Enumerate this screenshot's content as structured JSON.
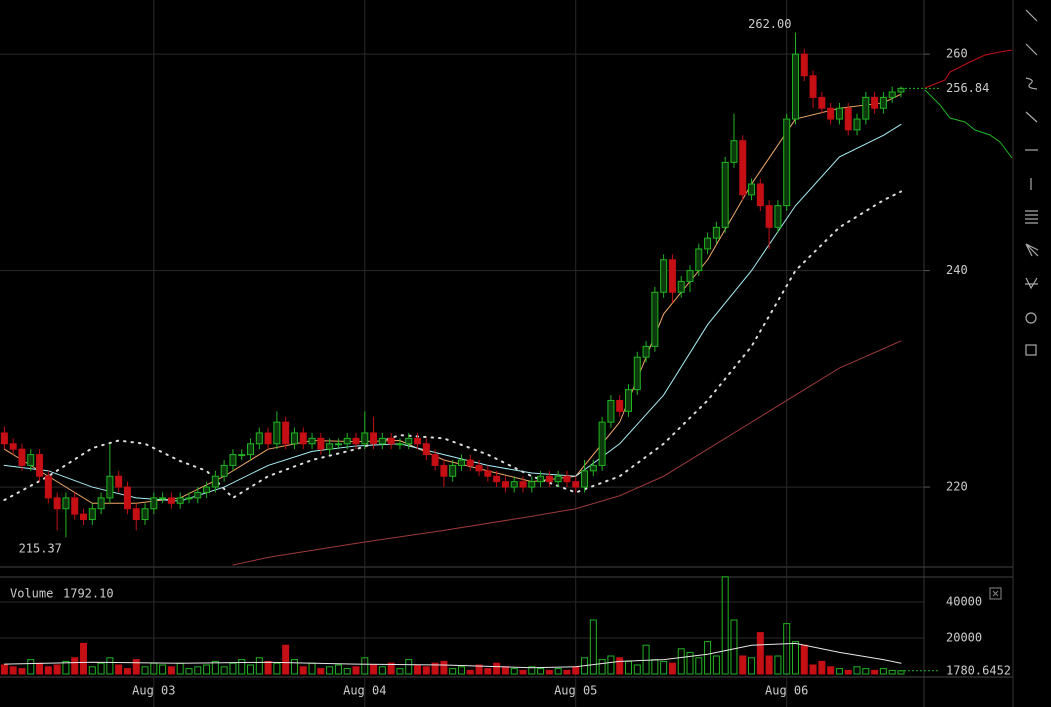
{
  "chart_data": {
    "type": "candlestick",
    "categories": [
      null,
      null,
      null,
      null,
      null,
      null,
      null,
      null,
      null,
      null,
      null,
      null,
      null,
      null,
      null,
      null,
      null,
      "Aug 03",
      null,
      null,
      null,
      null,
      null,
      null,
      null,
      null,
      null,
      null,
      null,
      null,
      null,
      null,
      null,
      null,
      null,
      null,
      null,
      null,
      null,
      null,
      null,
      "Aug 04",
      null,
      null,
      null,
      null,
      null,
      null,
      null,
      null,
      null,
      null,
      null,
      null,
      null,
      null,
      null,
      null,
      null,
      null,
      null,
      null,
      null,
      null,
      null,
      "Aug 05",
      null,
      null,
      null,
      null,
      null,
      null,
      null,
      null,
      null,
      null,
      null,
      null,
      null,
      null,
      null,
      null,
      null,
      null,
      null,
      null,
      null,
      null,
      null,
      "Aug 06",
      null,
      null,
      null,
      null,
      null,
      null,
      null,
      null,
      null,
      null,
      null,
      null,
      null
    ],
    "ohlc": [
      [
        225,
        225.6,
        223.5,
        224
      ],
      [
        224,
        224.5,
        223,
        223.5
      ],
      [
        223.5,
        224,
        221.5,
        222
      ],
      [
        222,
        223.5,
        221.5,
        223
      ],
      [
        223,
        223.5,
        220.5,
        221
      ],
      [
        221,
        221.5,
        218.5,
        219
      ],
      [
        219,
        219.5,
        216,
        218
      ],
      [
        218,
        219.5,
        215.37,
        219
      ],
      [
        219,
        219.5,
        217,
        217.5
      ],
      [
        217.5,
        218,
        216.5,
        217
      ],
      [
        217,
        218.5,
        216.5,
        218
      ],
      [
        218,
        219.5,
        217.5,
        219
      ],
      [
        219,
        224,
        218.5,
        221
      ],
      [
        221,
        221.5,
        219.5,
        220
      ],
      [
        220,
        220.5,
        217.5,
        218
      ],
      [
        218,
        218.5,
        216,
        217
      ],
      [
        217,
        218.5,
        216.5,
        218
      ],
      [
        218,
        219.5,
        217.5,
        219
      ],
      [
        219,
        219.5,
        218.5,
        219
      ],
      [
        219,
        219.5,
        218,
        218.5
      ],
      [
        218.5,
        219.5,
        218,
        219
      ],
      [
        219,
        219.5,
        218.5,
        219
      ],
      [
        219,
        220,
        218.5,
        219.5
      ],
      [
        219.5,
        220.5,
        219,
        220
      ],
      [
        220,
        221.5,
        219.5,
        221
      ],
      [
        221,
        222.5,
        220.5,
        222
      ],
      [
        222,
        223.5,
        221.5,
        223
      ],
      [
        223,
        223.5,
        222.5,
        223
      ],
      [
        223,
        224.5,
        222.5,
        224
      ],
      [
        224,
        225.5,
        223.5,
        225
      ],
      [
        225,
        225.5,
        223.5,
        224
      ],
      [
        224,
        227,
        223.5,
        226
      ],
      [
        226,
        226.5,
        223.5,
        224
      ],
      [
        224,
        225.5,
        223.5,
        225
      ],
      [
        225,
        225.5,
        223.5,
        224
      ],
      [
        224,
        225,
        223.5,
        224.5
      ],
      [
        224.5,
        225,
        223,
        223.5
      ],
      [
        223.5,
        224.5,
        223,
        224
      ],
      [
        224,
        224.5,
        223.5,
        224
      ],
      [
        224,
        225,
        223.5,
        224.5
      ],
      [
        224.5,
        225,
        223.5,
        224
      ],
      [
        224,
        227,
        223.5,
        225
      ],
      [
        225,
        226.5,
        223.5,
        224
      ],
      [
        224,
        225,
        223.5,
        224.5
      ],
      [
        224.5,
        225,
        223.5,
        224
      ],
      [
        224,
        224.5,
        223.5,
        224
      ],
      [
        224,
        225,
        223.5,
        224.5
      ],
      [
        224.5,
        225,
        223.5,
        224
      ],
      [
        224,
        224.5,
        222.5,
        223
      ],
      [
        223,
        223.5,
        221.5,
        222
      ],
      [
        222,
        222.5,
        220,
        221
      ],
      [
        221,
        222.5,
        220.5,
        222
      ],
      [
        222,
        223,
        221.5,
        222.5
      ],
      [
        222.5,
        223,
        221.5,
        222
      ],
      [
        222,
        222.5,
        221,
        221.5
      ],
      [
        221.5,
        222,
        220.5,
        221
      ],
      [
        221,
        221.5,
        220,
        220.5
      ],
      [
        220.5,
        221,
        219.5,
        220
      ],
      [
        220,
        221,
        219.5,
        220.5
      ],
      [
        220.5,
        221,
        219.5,
        220
      ],
      [
        220,
        221,
        219.5,
        220.5
      ],
      [
        220.5,
        221.5,
        220,
        221
      ],
      [
        221,
        221.5,
        220,
        220.5
      ],
      [
        220.5,
        221.5,
        220,
        221
      ],
      [
        221,
        221.5,
        220,
        220.5
      ],
      [
        220.5,
        221,
        219.5,
        220
      ],
      [
        220,
        222.5,
        219.5,
        221.5
      ],
      [
        221.5,
        222.5,
        221,
        222
      ],
      [
        222,
        226.5,
        221.5,
        226
      ],
      [
        226,
        228.5,
        225.5,
        228
      ],
      [
        228,
        228.5,
        226.5,
        227
      ],
      [
        227,
        229.5,
        226.5,
        229
      ],
      [
        229,
        232.5,
        228.5,
        232
      ],
      [
        232,
        233.5,
        231.5,
        233
      ],
      [
        233,
        238.5,
        232.5,
        238
      ],
      [
        238,
        241.5,
        237.5,
        241
      ],
      [
        241,
        241.5,
        237,
        238
      ],
      [
        238,
        239.5,
        237.5,
        239
      ],
      [
        239,
        240.5,
        238,
        240
      ],
      [
        240,
        242.5,
        239.5,
        242
      ],
      [
        242,
        243.5,
        241.5,
        243
      ],
      [
        243,
        244.5,
        242.5,
        244
      ],
      [
        244,
        250.5,
        243.5,
        250
      ],
      [
        250,
        254.5,
        249.5,
        252
      ],
      [
        252,
        252.5,
        246.5,
        247
      ],
      [
        247,
        248.5,
        246.5,
        248
      ],
      [
        248,
        248.5,
        245.5,
        246
      ],
      [
        246,
        246.5,
        242,
        244
      ],
      [
        244,
        246.5,
        243.5,
        246
      ],
      [
        246,
        254.5,
        245.5,
        254
      ],
      [
        254,
        262,
        253.5,
        260
      ],
      [
        260,
        260.5,
        257.5,
        258
      ],
      [
        258,
        258.5,
        255,
        256
      ],
      [
        256,
        256.5,
        254.5,
        255
      ],
      [
        255,
        255.5,
        253.5,
        254
      ],
      [
        254,
        255.5,
        253.5,
        255
      ],
      [
        255,
        255.5,
        252.5,
        253
      ],
      [
        253,
        254.5,
        252.5,
        254
      ],
      [
        254,
        256.5,
        253.5,
        256
      ],
      [
        256,
        256.5,
        254.5,
        255
      ],
      [
        255,
        256.5,
        254.5,
        256
      ],
      [
        256,
        257,
        255.5,
        256.5
      ],
      [
        256.5,
        257,
        256,
        256.84
      ]
    ],
    "up_color": "#22b422",
    "down_color": "#c40f14",
    "ylim": [
      212.8,
      265
    ],
    "yticks": [
      220,
      240,
      260
    ],
    "grid": true,
    "annotations": [
      {
        "value": 262,
        "label": "262.00",
        "index": 90
      },
      {
        "value": 215.37,
        "label": "215.37",
        "index": 7
      }
    ],
    "lines": [
      {
        "color": "#f0a868",
        "x": [
          0,
          5,
          10,
          15,
          20,
          25,
          30,
          35,
          40,
          45,
          50,
          55,
          60,
          65,
          70,
          75,
          80,
          85,
          90,
          95,
          100,
          102
        ],
        "values": [
          223.5,
          221,
          218.5,
          218.5,
          219,
          221,
          223.5,
          224.3,
          224.2,
          224.3,
          222.5,
          221.5,
          220.5,
          221,
          226,
          236,
          241,
          248,
          254,
          255,
          255.5,
          256.3
        ]
      },
      {
        "color": "#a8f0f8",
        "x": [
          0,
          5,
          10,
          15,
          20,
          25,
          30,
          35,
          40,
          45,
          50,
          55,
          60,
          65,
          70,
          75,
          80,
          85,
          90,
          95,
          100,
          102
        ],
        "values": [
          222,
          221.5,
          220,
          219,
          218.7,
          220,
          222,
          223.3,
          223.8,
          224,
          223,
          222,
          221.3,
          221,
          224,
          228.5,
          235,
          240,
          246,
          250.5,
          252.5,
          253.5
        ]
      },
      {
        "color": "#dddddd",
        "style": "dotted",
        "x": [
          0,
          5,
          10,
          13,
          16,
          20,
          23,
          26,
          30,
          35,
          40,
          45,
          50,
          55,
          60,
          65,
          70,
          75,
          80,
          85,
          90,
          95,
          100,
          102
        ],
        "values": [
          218.8,
          221,
          223.6,
          224.3,
          224,
          222.4,
          221.5,
          219,
          221,
          222.5,
          223.5,
          224.8,
          224.5,
          223,
          221,
          219.5,
          221,
          224,
          228,
          233,
          240,
          244,
          246.5,
          247.3
        ]
      },
      {
        "color": "#9c3a3a",
        "x": [
          26,
          30,
          40,
          50,
          60,
          65,
          70,
          75,
          80,
          85,
          90,
          95,
          102
        ],
        "values": [
          212.8,
          213.5,
          214.8,
          216,
          217.3,
          218,
          219.2,
          221,
          223.5,
          226,
          228.5,
          231,
          233.5
        ]
      }
    ],
    "volume": {
      "label": "Volume",
      "readout": "1792.10",
      "color_up": "#22b422",
      "color_down": "#c40f14",
      "values": [
        5000,
        4000,
        3000,
        8000,
        6000,
        4000,
        5000,
        7000,
        9000,
        17000,
        4000,
        6000,
        9000,
        5000,
        3000,
        8000,
        4000,
        6000,
        5000,
        4000,
        6000,
        3000,
        4000,
        5000,
        7000,
        4000,
        6000,
        8000,
        5000,
        9000,
        7000,
        6000,
        16000,
        8000,
        4000,
        6000,
        3000,
        4000,
        5000,
        3000,
        4000,
        9000,
        5000,
        4000,
        6000,
        3000,
        8000,
        5000,
        4000,
        6000,
        7000,
        3000,
        4000,
        2000,
        5000,
        3000,
        6000,
        4000,
        3000,
        2000,
        4000,
        3000,
        2000,
        3000,
        2000,
        4000,
        9000,
        30000,
        8000,
        10000,
        9000,
        7000,
        5000,
        16000,
        8000,
        7000,
        6000,
        14000,
        12000,
        9000,
        18000,
        10000,
        54000,
        30000,
        10000,
        9000,
        23000,
        10000,
        10000,
        28000,
        18000,
        16000,
        5000,
        7000,
        4000,
        3000,
        2000,
        4000,
        3000,
        2000,
        3000,
        2000,
        1792.1
      ],
      "ylim": [
        0,
        53900
      ],
      "yticks": [
        20000,
        40000
      ],
      "marker": {
        "value": 1780.6452,
        "label": "1780.6452"
      },
      "ma": {
        "color": "#e8e8e8",
        "x": [
          0,
          10,
          20,
          30,
          40,
          50,
          60,
          65,
          70,
          75,
          80,
          85,
          90,
          95,
          100,
          102
        ],
        "values": [
          5500,
          6500,
          6000,
          6500,
          5500,
          5000,
          3500,
          4000,
          7000,
          8000,
          11000,
          16000,
          17000,
          12000,
          8000,
          6000
        ]
      }
    }
  }
}
